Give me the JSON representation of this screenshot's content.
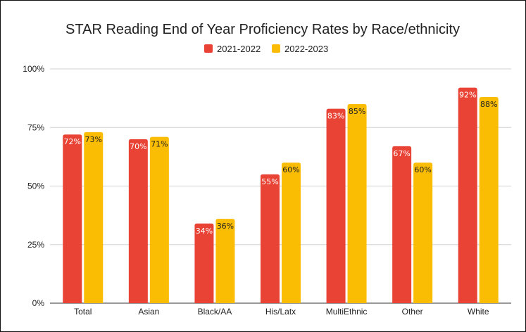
{
  "chart_data": {
    "type": "bar",
    "title": "STAR Reading End of Year Proficiency Rates by Race/ethnicity",
    "xlabel": "",
    "ylabel": "",
    "ylim": [
      0,
      100
    ],
    "yticks": [
      "0%",
      "25%",
      "50%",
      "75%",
      "100%"
    ],
    "grid": true,
    "legend_position": "top",
    "categories": [
      "Total",
      "Asian",
      "Black/AA",
      "His/Latx",
      "MultiEthnic",
      "Other",
      "White"
    ],
    "series": [
      {
        "name": "2021-2022",
        "color": "#E84335",
        "values": [
          72,
          70,
          34,
          55,
          83,
          67,
          92
        ],
        "labels": [
          "72%",
          "70%",
          "34%",
          "55%",
          "83%",
          "67%",
          "92%"
        ],
        "label_color": "#ffffff"
      },
      {
        "name": "2022-2023",
        "color": "#FBBC04",
        "values": [
          73,
          71,
          36,
          60,
          85,
          60,
          88
        ],
        "labels": [
          "73%",
          "71%",
          "36%",
          "60%",
          "85%",
          "60%",
          "88%"
        ],
        "label_color": "#222222"
      }
    ]
  }
}
